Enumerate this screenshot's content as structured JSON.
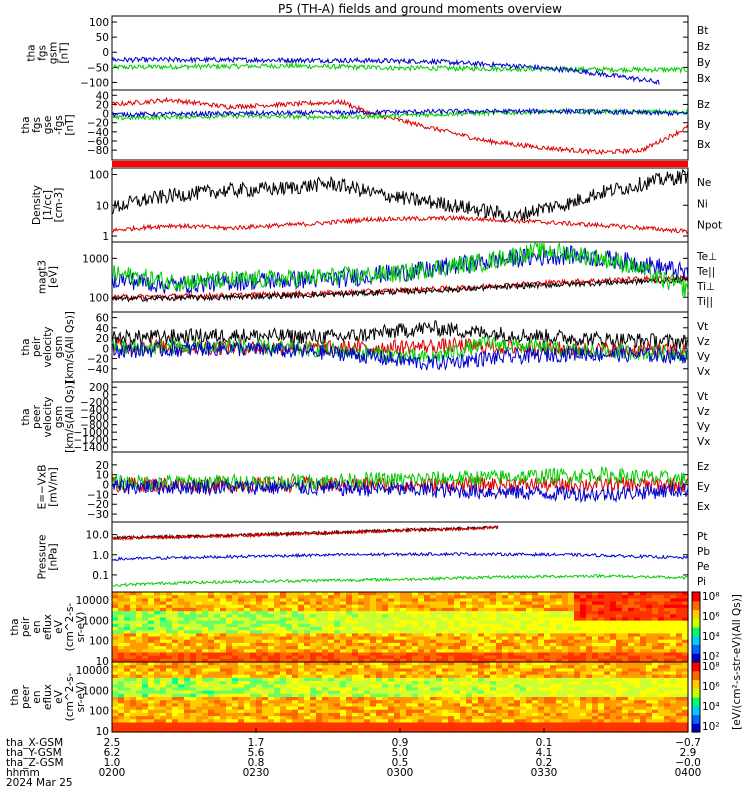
{
  "title": "P5 (TH-A) fields and ground moments overview",
  "chart_data": [
    {
      "type": "line",
      "id": "fgs_gsm",
      "ylabel_lines": [
        "tha",
        "fgs",
        "gsm",
        "[nT]"
      ],
      "yticks": [
        100,
        50,
        0,
        -50,
        -100
      ],
      "ylim": [
        -115,
        110
      ],
      "ytick_labels": [
        "100",
        "50",
        "0",
        "−50",
        "−100"
      ],
      "series": [
        {
          "name": "Bt",
          "color": "#000000",
          "points": []
        },
        {
          "name": "Bz",
          "color": "#dd0000",
          "points": []
        },
        {
          "name": "By",
          "color": "#00cc00",
          "points": [
            [
              0,
              -50
            ],
            [
              0.1,
              -48
            ],
            [
              0.3,
              -45
            ],
            [
              0.5,
              -52
            ],
            [
              0.7,
              -55
            ],
            [
              0.85,
              -57
            ],
            [
              1,
              -58
            ]
          ]
        },
        {
          "name": "Bx",
          "color": "#0000cc",
          "points": [
            [
              0,
              -25
            ],
            [
              0.2,
              -25
            ],
            [
              0.4,
              -27
            ],
            [
              0.55,
              -30
            ],
            [
              0.7,
              -45
            ],
            [
              0.8,
              -60
            ],
            [
              0.9,
              -85
            ],
            [
              0.95,
              -100
            ]
          ]
        }
      ]
    },
    {
      "type": "line",
      "id": "fgs_gse",
      "ylabel_lines": [
        "tha",
        "fgs",
        "gse",
        "-fgs",
        "[nT]"
      ],
      "yticks": [
        40,
        20,
        0,
        -20,
        -40,
        -60,
        -80
      ],
      "ylim": [
        -95,
        45
      ],
      "ytick_labels": [
        "40",
        "20",
        "0",
        "−20",
        "−40",
        "−60",
        "−80"
      ],
      "series": [
        {
          "name": "Bz",
          "color": "#dd0000",
          "points": [
            [
              0,
              20
            ],
            [
              0.1,
              30
            ],
            [
              0.2,
              15
            ],
            [
              0.3,
              20
            ],
            [
              0.4,
              25
            ],
            [
              0.45,
              0
            ],
            [
              0.55,
              -30
            ],
            [
              0.65,
              -60
            ],
            [
              0.75,
              -75
            ],
            [
              0.85,
              -85
            ],
            [
              0.92,
              -80
            ],
            [
              1,
              -30
            ]
          ]
        },
        {
          "name": "By",
          "color": "#00cc00",
          "points": [
            [
              0,
              -10
            ],
            [
              0.2,
              -5
            ],
            [
              0.4,
              -8
            ],
            [
              0.6,
              0
            ],
            [
              0.8,
              5
            ],
            [
              1,
              3
            ]
          ]
        },
        {
          "name": "Bx",
          "color": "#0000cc",
          "points": [
            [
              0,
              -2
            ],
            [
              0.2,
              0
            ],
            [
              0.4,
              2
            ],
            [
              0.6,
              5
            ],
            [
              0.8,
              5
            ],
            [
              1,
              0
            ]
          ]
        }
      ]
    },
    {
      "type": "line",
      "id": "density",
      "ylabel_lines": [
        "Density",
        "[1/cc]",
        "[cm-3]"
      ],
      "scale": "log",
      "yticks": [
        100,
        10,
        1
      ],
      "ylim": [
        0.8,
        130
      ],
      "ytick_labels": [
        "100",
        "10",
        "1"
      ],
      "series": [
        {
          "name": "Ne",
          "color": "#dd0000",
          "points": [
            [
              0,
              1.5
            ],
            [
              0.1,
              2.2
            ],
            [
              0.2,
              1.8
            ],
            [
              0.35,
              2.5
            ],
            [
              0.45,
              3.5
            ],
            [
              0.6,
              3.8
            ],
            [
              0.8,
              2.5
            ],
            [
              1,
              1.4
            ]
          ]
        },
        {
          "name": "Ni",
          "color": "#000000",
          "points": [
            [
              0,
              8
            ],
            [
              0.1,
              20
            ],
            [
              0.2,
              30
            ],
            [
              0.3,
              35
            ],
            [
              0.38,
              50
            ],
            [
              0.45,
              25
            ],
            [
              0.52,
              15
            ],
            [
              0.62,
              8
            ],
            [
              0.7,
              4
            ],
            [
              0.8,
              12
            ],
            [
              0.9,
              40
            ],
            [
              1,
              90
            ]
          ]
        },
        {
          "name": "Npot",
          "color": "#0000cc",
          "points": []
        }
      ]
    },
    {
      "type": "line",
      "id": "temp",
      "ylabel_lines": [
        "magt3",
        "[eV]"
      ],
      "scale": "log",
      "yticks": [
        1000,
        100
      ],
      "ylim": [
        50,
        2200
      ],
      "ytick_labels": [
        "1000",
        "100"
      ],
      "series": [
        {
          "name": "Te⊥",
          "color": "#dd0000",
          "points": [
            [
              0,
              100
            ],
            [
              0.2,
              110
            ],
            [
              0.4,
              130
            ],
            [
              0.6,
              170
            ],
            [
              0.8,
              250
            ],
            [
              1,
              320
            ]
          ]
        },
        {
          "name": "Te||",
          "color": "#000000",
          "points": [
            [
              0,
              90
            ],
            [
              0.2,
              100
            ],
            [
              0.4,
              120
            ],
            [
              0.6,
              160
            ],
            [
              0.8,
              220
            ],
            [
              1,
              280
            ]
          ]
        },
        {
          "name": "Ti⊥",
          "color": "#0000cc",
          "points": [
            [
              0,
              300
            ],
            [
              0.1,
              200
            ],
            [
              0.2,
              250
            ],
            [
              0.4,
              300
            ],
            [
              0.55,
              500
            ],
            [
              0.7,
              1000
            ],
            [
              0.8,
              1200
            ],
            [
              0.9,
              800
            ],
            [
              1,
              400
            ]
          ]
        },
        {
          "name": "Ti||",
          "color": "#00cc00",
          "points": [
            [
              0,
              400
            ],
            [
              0.1,
              250
            ],
            [
              0.3,
              300
            ],
            [
              0.5,
              400
            ],
            [
              0.65,
              800
            ],
            [
              0.75,
              1600
            ],
            [
              0.85,
              1000
            ],
            [
              0.95,
              300
            ],
            [
              1,
              150
            ]
          ]
        }
      ]
    },
    {
      "type": "line",
      "id": "peir_vel",
      "ylabel_lines": [
        "tha",
        "peir",
        "velocity",
        "gsm",
        "[km/s(All Qs)]"
      ],
      "yticks": [
        60,
        40,
        20,
        0,
        -20,
        -40
      ],
      "ylim": [
        -60,
        65
      ],
      "ytick_labels": [
        "60",
        "40",
        "20",
        "0",
        "−20",
        "−40"
      ],
      "series": [
        {
          "name": "Vt",
          "color": "#000000",
          "points": [
            [
              0,
              20
            ],
            [
              0.2,
              25
            ],
            [
              0.4,
              22
            ],
            [
              0.55,
              40
            ],
            [
              0.65,
              30
            ],
            [
              0.8,
              20
            ],
            [
              1,
              12
            ]
          ]
        },
        {
          "name": "Vz",
          "color": "#dd0000",
          "points": [
            [
              0,
              5
            ],
            [
              0.2,
              2
            ],
            [
              0.4,
              0
            ],
            [
              0.6,
              5
            ],
            [
              0.8,
              -2
            ],
            [
              1,
              -5
            ]
          ]
        },
        {
          "name": "Vy",
          "color": "#00cc00",
          "points": [
            [
              0,
              0
            ],
            [
              0.2,
              5
            ],
            [
              0.4,
              -5
            ],
            [
              0.55,
              -20
            ],
            [
              0.65,
              10
            ],
            [
              0.8,
              -5
            ],
            [
              1,
              -10
            ]
          ]
        },
        {
          "name": "Vx",
          "color": "#0000cc",
          "points": [
            [
              0,
              -5
            ],
            [
              0.2,
              0
            ],
            [
              0.4,
              -10
            ],
            [
              0.55,
              -30
            ],
            [
              0.65,
              -20
            ],
            [
              0.8,
              -10
            ],
            [
              1,
              -15
            ]
          ]
        }
      ]
    },
    {
      "type": "line",
      "id": "peer_vel",
      "ylabel_lines": [
        "tha",
        "peer",
        "velocity",
        "gsm",
        "[km/s(All Qs)]"
      ],
      "yticks": [
        200,
        0,
        -200,
        -400,
        -600,
        -800,
        -1000,
        -1200,
        -1400
      ],
      "ylim": [
        -1450,
        260
      ],
      "ytick_labels": [
        "200",
        "0",
        "−200",
        "−400",
        "−600",
        "−800",
        "−1000",
        "−1200",
        "−1400"
      ],
      "series": [
        {
          "name": "Vt",
          "color": "#000000",
          "points": []
        },
        {
          "name": "Vz",
          "color": "#dd0000",
          "points": []
        },
        {
          "name": "Vy",
          "color": "#00cc00",
          "points": []
        },
        {
          "name": "Vx",
          "color": "#0000cc",
          "points": []
        }
      ]
    },
    {
      "type": "line",
      "id": "efield",
      "ylabel_lines": [
        "E=−VxB",
        "[mV/m]"
      ],
      "yticks": [
        20,
        10,
        0,
        -10,
        -20,
        -30
      ],
      "ylim": [
        -35,
        30
      ],
      "ytick_labels": [
        "20",
        "10",
        "0",
        "−10",
        "−20",
        "−30"
      ],
      "series": [
        {
          "name": "Ez",
          "color": "#dd0000",
          "points": [
            [
              0,
              0
            ],
            [
              0.5,
              0
            ],
            [
              1,
              0
            ]
          ]
        },
        {
          "name": "Ey",
          "color": "#00cc00",
          "points": [
            [
              0,
              2
            ],
            [
              0.3,
              3
            ],
            [
              0.5,
              5
            ],
            [
              0.7,
              8
            ],
            [
              0.85,
              10
            ],
            [
              1,
              5
            ]
          ]
        },
        {
          "name": "Ex",
          "color": "#0000cc",
          "points": [
            [
              0,
              -2
            ],
            [
              0.3,
              -3
            ],
            [
              0.5,
              -5
            ],
            [
              0.7,
              -8
            ],
            [
              0.85,
              -10
            ],
            [
              1,
              -5
            ]
          ]
        }
      ]
    },
    {
      "type": "line",
      "id": "pressure",
      "ylabel_lines": [
        "Pressure",
        "[nPa]"
      ],
      "scale": "log",
      "yticks": [
        10,
        1,
        0.1
      ],
      "ylim": [
        0.02,
        30
      ],
      "ytick_labels": [
        "10.0",
        "1.0",
        "0.1"
      ],
      "series": [
        {
          "name": "Pt",
          "color": "#000000",
          "points": [
            [
              0,
              7
            ],
            [
              0.2,
              9
            ],
            [
              0.4,
              13
            ],
            [
              0.6,
              20
            ],
            [
              0.67,
              24
            ]
          ]
        },
        {
          "name": "Pb",
          "color": "#dd0000",
          "points": [
            [
              0,
              6.5
            ],
            [
              0.2,
              8.5
            ],
            [
              0.4,
              12.5
            ],
            [
              0.6,
              19
            ],
            [
              0.67,
              23
            ]
          ]
        },
        {
          "name": "Pe",
          "color": "#00cc00",
          "points": [
            [
              0,
              0.03
            ],
            [
              0.1,
              0.04
            ],
            [
              0.3,
              0.05
            ],
            [
              0.5,
              0.06
            ],
            [
              0.7,
              0.08
            ],
            [
              0.85,
              0.09
            ],
            [
              1,
              0.07
            ]
          ]
        },
        {
          "name": "Pi",
          "color": "#0000cc",
          "points": [
            [
              0,
              0.6
            ],
            [
              0.2,
              0.8
            ],
            [
              0.4,
              1.0
            ],
            [
              0.6,
              1.1
            ],
            [
              0.8,
              1.0
            ],
            [
              1,
              0.7
            ]
          ]
        }
      ]
    },
    {
      "type": "heatmap",
      "id": "peir_eflux",
      "ylabel_lines": [
        "tha",
        "peir",
        "en",
        "eflux",
        "eV",
        "(cm^2-s-",
        "sr-eV)"
      ],
      "scale": "log",
      "yticks": [
        10000,
        1000,
        100,
        10
      ],
      "ytick_labels": [
        "10000",
        "1000",
        "100",
        "10"
      ]
    },
    {
      "type": "heatmap",
      "id": "peer_eflux",
      "ylabel_lines": [
        "tha",
        "peer",
        "en",
        "eflux",
        "eV",
        "(cm^2-s-",
        "sr-eV)"
      ],
      "scale": "log",
      "yticks": [
        10000,
        1000,
        100,
        10
      ],
      "ytick_labels": [
        "10000",
        "1000",
        "100",
        "10"
      ]
    }
  ],
  "colorbar": {
    "labels": [
      "10⁸",
      "10⁶",
      "10⁴",
      "10²"
    ],
    "label": "[eV/(cm²-s-str-eV)(All Qs)]"
  },
  "ephemeris": {
    "rows": [
      {
        "name": "tha_X-GSM",
        "values": [
          "2.5",
          "1.7",
          "0.9",
          "0.1",
          "−0.7"
        ]
      },
      {
        "name": "tha_Y-GSM",
        "values": [
          "6.2",
          "5.6",
          "5.0",
          "4.1",
          "2.9"
        ]
      },
      {
        "name": "tha_Z-GSM",
        "values": [
          "1.0",
          "0.8",
          "0.5",
          "0.2",
          "−0.0"
        ]
      },
      {
        "name": "hhmm",
        "values": [
          "0200",
          "0230",
          "0300",
          "0330",
          "0400"
        ]
      }
    ],
    "date": "2024 Mar 25"
  }
}
